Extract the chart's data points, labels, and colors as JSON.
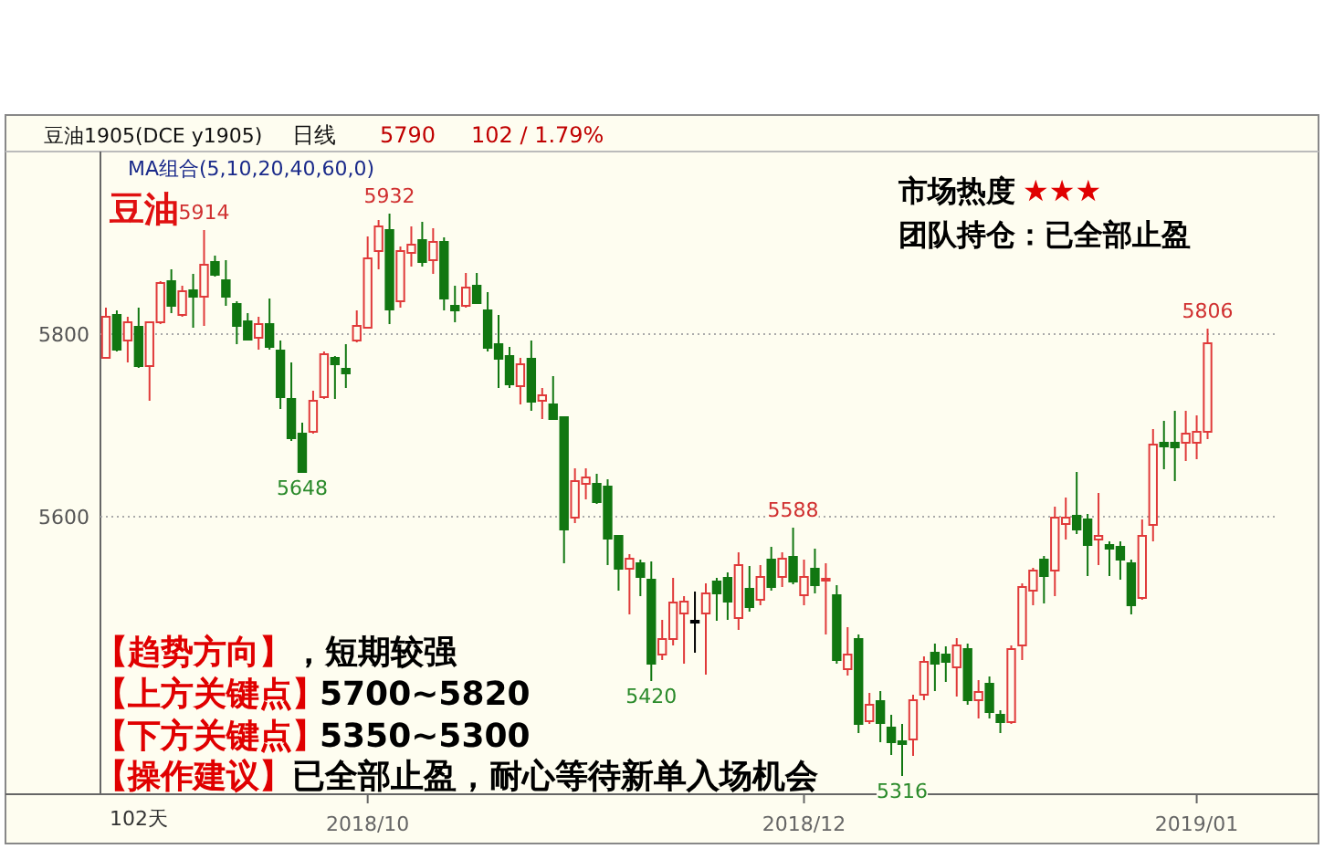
{
  "chart_data": {
    "type": "candlestick",
    "title": "豆油",
    "categories": [
      null,
      null,
      null,
      null,
      null,
      null,
      null,
      null,
      null,
      null,
      null,
      null,
      null,
      null,
      null,
      null,
      null,
      null,
      null,
      null,
      null,
      null,
      null,
      null,
      "2018/10",
      null,
      null,
      null,
      null,
      null,
      null,
      null,
      null,
      null,
      null,
      null,
      null,
      null,
      null,
      null,
      null,
      null,
      null,
      null,
      null,
      null,
      null,
      null,
      null,
      null,
      null,
      null,
      null,
      null,
      null,
      null,
      null,
      null,
      null,
      null,
      null,
      null,
      null,
      null,
      "2018/12",
      null,
      null,
      null,
      null,
      null,
      null,
      null,
      null,
      null,
      null,
      null,
      null,
      null,
      null,
      null,
      null,
      null,
      null,
      null,
      null,
      null,
      null,
      null,
      null,
      null,
      null,
      null,
      null,
      null,
      null,
      null,
      null,
      null,
      null,
      null,
      "2019/01",
      null
    ],
    "ohlc": [
      [
        5774,
        5829,
        5773,
        5819
      ],
      [
        5821,
        5826,
        5781,
        5783
      ],
      [
        5793,
        5819,
        5769,
        5813
      ],
      [
        5808,
        5829,
        5763,
        5765
      ],
      [
        5765,
        5813,
        5727,
        5813
      ],
      [
        5813,
        5858,
        5811,
        5856
      ],
      [
        5858,
        5871,
        5823,
        5831
      ],
      [
        5821,
        5853,
        5819,
        5847
      ],
      [
        5848,
        5866,
        5807,
        5841
      ],
      [
        5841,
        5914,
        5809,
        5876
      ],
      [
        5879,
        5886,
        5863,
        5865
      ],
      [
        5859,
        5881,
        5831,
        5841
      ],
      [
        5833,
        5836,
        5789,
        5809
      ],
      [
        5814,
        5823,
        5793,
        5794
      ],
      [
        5796,
        5819,
        5783,
        5811
      ],
      [
        5811,
        5839,
        5783,
        5786
      ],
      [
        5782,
        5793,
        5718,
        5731
      ],
      [
        5729,
        5769,
        5683,
        5686
      ],
      [
        5691,
        5703,
        5648,
        5649
      ],
      [
        5693,
        5738,
        5691,
        5727
      ],
      [
        5731,
        5781,
        5729,
        5778
      ],
      [
        5774,
        5776,
        5729,
        5767
      ],
      [
        5762,
        5789,
        5741,
        5757
      ],
      [
        5793,
        5826,
        5791,
        5809
      ],
      [
        5807,
        5907,
        5806,
        5883
      ],
      [
        5891,
        5925,
        5871,
        5918
      ],
      [
        5914,
        5932,
        5811,
        5827
      ],
      [
        5836,
        5896,
        5829,
        5891
      ],
      [
        5889,
        5918,
        5874,
        5898
      ],
      [
        5903,
        5923,
        5874,
        5879
      ],
      [
        5881,
        5916,
        5866,
        5901
      ],
      [
        5901,
        5906,
        5826,
        5839
      ],
      [
        5831,
        5853,
        5813,
        5826
      ],
      [
        5831,
        5867,
        5829,
        5851
      ],
      [
        5853,
        5867,
        5833,
        5834
      ],
      [
        5826,
        5846,
        5781,
        5785
      ],
      [
        5789,
        5821,
        5741,
        5773
      ],
      [
        5776,
        5786,
        5741,
        5745
      ],
      [
        5743,
        5774,
        5723,
        5767
      ],
      [
        5773,
        5793,
        5716,
        5726
      ],
      [
        5727,
        5741,
        5707,
        5733
      ],
      [
        5723,
        5754,
        5706,
        5707
      ],
      [
        5709,
        5709,
        5549,
        5586
      ],
      [
        5599,
        5653,
        5593,
        5639
      ],
      [
        5636,
        5653,
        5619,
        5643
      ],
      [
        5636,
        5647,
        5614,
        5616
      ],
      [
        5633,
        5641,
        5547,
        5576
      ],
      [
        5579,
        5579,
        5519,
        5543
      ],
      [
        5543,
        5559,
        5493,
        5554
      ],
      [
        5549,
        5553,
        5513,
        5534
      ],
      [
        5531,
        5551,
        5420,
        5439
      ],
      [
        5449,
        5487,
        5443,
        5466
      ],
      [
        5466,
        5533,
        5459,
        5506
      ],
      [
        5494,
        5513,
        5439,
        5507
      ],
      [
        5486,
        5518,
        5451,
        5486
      ],
      [
        5494,
        5527,
        5427,
        5516
      ],
      [
        5529,
        5533,
        5486,
        5516
      ],
      [
        5533,
        5539,
        5487,
        5507
      ],
      [
        5489,
        5561,
        5476,
        5547
      ],
      [
        5521,
        5546,
        5496,
        5501
      ],
      [
        5509,
        5547,
        5503,
        5534
      ],
      [
        5553,
        5567,
        5519,
        5523
      ],
      [
        5534,
        5561,
        5523,
        5554
      ],
      [
        5556,
        5588,
        5526,
        5529
      ],
      [
        5514,
        5553,
        5503,
        5534
      ],
      [
        5543,
        5565,
        5516,
        5525
      ],
      [
        5530,
        5549,
        5471,
        5532
      ],
      [
        5514,
        5525,
        5439,
        5443
      ],
      [
        5433,
        5479,
        5426,
        5449
      ],
      [
        5466,
        5471,
        5363,
        5373
      ],
      [
        5376,
        5407,
        5373,
        5394
      ],
      [
        5398,
        5409,
        5353,
        5374
      ],
      [
        5369,
        5383,
        5339,
        5353
      ],
      [
        5354,
        5373,
        5316,
        5351
      ],
      [
        5356,
        5405,
        5338,
        5399
      ],
      [
        5405,
        5447,
        5399,
        5441
      ],
      [
        5451,
        5461,
        5409,
        5439
      ],
      [
        5449,
        5458,
        5419,
        5441
      ],
      [
        5435,
        5467,
        5403,
        5459
      ],
      [
        5455,
        5461,
        5394,
        5399
      ],
      [
        5399,
        5421,
        5379,
        5408
      ],
      [
        5417,
        5425,
        5379,
        5386
      ],
      [
        5383,
        5388,
        5363,
        5375
      ],
      [
        5375,
        5459,
        5373,
        5455
      ],
      [
        5459,
        5527,
        5443,
        5523
      ],
      [
        5519,
        5544,
        5503,
        5541
      ],
      [
        5553,
        5557,
        5505,
        5535
      ],
      [
        5541,
        5611,
        5513,
        5599
      ],
      [
        5592,
        5621,
        5575,
        5599
      ],
      [
        5601,
        5649,
        5581,
        5586
      ],
      [
        5597,
        5603,
        5535,
        5569
      ],
      [
        5575,
        5626,
        5547,
        5579
      ],
      [
        5569,
        5573,
        5535,
        5565
      ],
      [
        5567,
        5573,
        5531,
        5553
      ],
      [
        5549,
        5553,
        5493,
        5503
      ],
      [
        5511,
        5597,
        5509,
        5579
      ],
      [
        5591,
        5696,
        5573,
        5679
      ],
      [
        5681,
        5705,
        5652,
        5677
      ],
      [
        5681,
        5716,
        5639,
        5676
      ],
      [
        5681,
        5716,
        5661,
        5691
      ],
      [
        5681,
        5711,
        5663,
        5693
      ],
      [
        5693,
        5806,
        5685,
        5790
      ]
    ],
    "colors": [
      "#e03a3a",
      "#117711",
      "#e03a3a",
      "#117711",
      "#e03a3a",
      "#e03a3a",
      "#117711",
      "#e03a3a",
      "#117711",
      "#e03a3a",
      "#117711",
      "#117711",
      "#117711",
      "#117711",
      "#e03a3a",
      "#117711",
      "#117711",
      "#117711",
      "#117711",
      "#e03a3a",
      "#e03a3a",
      "#117711",
      "#117711",
      "#e03a3a",
      "#e03a3a",
      "#e03a3a",
      "#117711",
      "#e03a3a",
      "#e03a3a",
      "#117711",
      "#e03a3a",
      "#117711",
      "#117711",
      "#e03a3a",
      "#117711",
      "#117711",
      "#117711",
      "#117711",
      "#e03a3a",
      "#117711",
      "#e03a3a",
      "#117711",
      "#117711",
      "#e03a3a",
      "#e03a3a",
      "#117711",
      "#117711",
      "#117711",
      "#e03a3a",
      "#117711",
      "#117711",
      "#e03a3a",
      "#e03a3a",
      "#e03a3a",
      "#000000",
      "#e03a3a",
      "#117711",
      "#117711",
      "#e03a3a",
      "#117711",
      "#e03a3a",
      "#117711",
      "#e03a3a",
      "#117711",
      "#e03a3a",
      "#117711",
      "#e03a3a",
      "#117711",
      "#e03a3a",
      "#117711",
      "#e03a3a",
      "#117711",
      "#117711",
      "#117711",
      "#e03a3a",
      "#e03a3a",
      "#117711",
      "#117711",
      "#e03a3a",
      "#117711",
      "#e03a3a",
      "#117711",
      "#117711",
      "#e03a3a",
      "#e03a3a",
      "#e03a3a",
      "#117711",
      "#e03a3a",
      "#e03a3a",
      "#117711",
      "#117711",
      "#e03a3a",
      "#117711",
      "#117711",
      "#117711",
      "#e03a3a",
      "#e03a3a",
      "#117711",
      "#117711",
      "#e03a3a",
      "#e03a3a",
      "#e03a3a"
    ],
    "ylim": [
      5296,
      6000
    ],
    "yticks": [
      5800,
      5600
    ],
    "grid": "y",
    "annotations": [
      "豆油1905(DCE y1905)",
      "日线",
      "5790",
      "102 / 1.79%",
      "MA组合(5,10,20,40,60,0)",
      "市场热度",
      "★★★",
      "团队持仓：已全部止盈",
      "【趋势方向】",
      "，短期较强",
      "【上方关键点】",
      "5700~5820",
      "【下方关键点】",
      "5350~5300",
      "【操作建议】",
      "已全部止盈，耐心等待新单入场机会",
      "102天",
      {
        "text": "5914",
        "y": 5914
      },
      {
        "text": "5932",
        "y": 5932
      },
      {
        "text": "5648",
        "y": 5648
      },
      {
        "text": "5420",
        "y": 5420
      },
      {
        "text": "5588",
        "y": 5588
      },
      {
        "text": "5316",
        "y": 5316
      },
      {
        "text": "5806",
        "y": 5806
      }
    ]
  }
}
